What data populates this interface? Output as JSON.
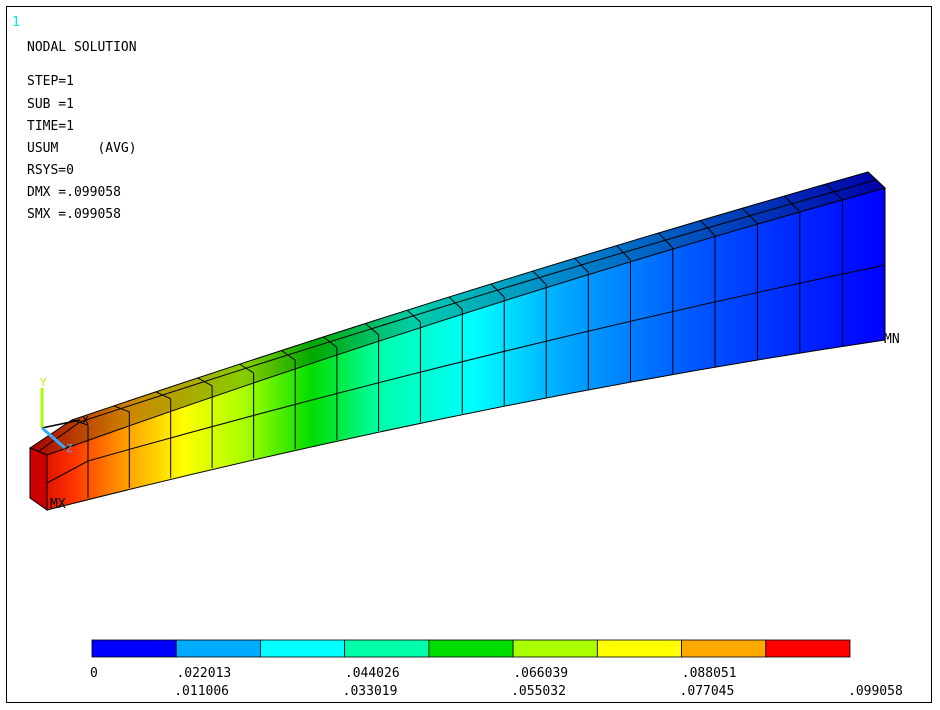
{
  "window_number": "1",
  "title": "NODAL SOLUTION",
  "info": [
    "STEP=1",
    "SUB =1",
    "TIME=1",
    "USUM     (AVG)",
    "RSYS=0",
    "DMX =.099058",
    "SMX =.099058"
  ],
  "markers": {
    "mx": "MX",
    "mn": "MN"
  },
  "triad": {
    "x": "X",
    "y": "Y",
    "z": "Z"
  },
  "contour": {
    "colors": [
      "#0000ff",
      "#00aaff",
      "#00ffff",
      "#00ffaa",
      "#00dd00",
      "#aaff00",
      "#ffff00",
      "#ffaa00",
      "#ff0000"
    ],
    "labels_upper": [
      "0",
      ".022013",
      ".044026",
      ".066039",
      ".088051"
    ],
    "labels_lower": [
      ".011006",
      ".033019",
      ".055032",
      ".077045",
      ".099058"
    ]
  }
}
